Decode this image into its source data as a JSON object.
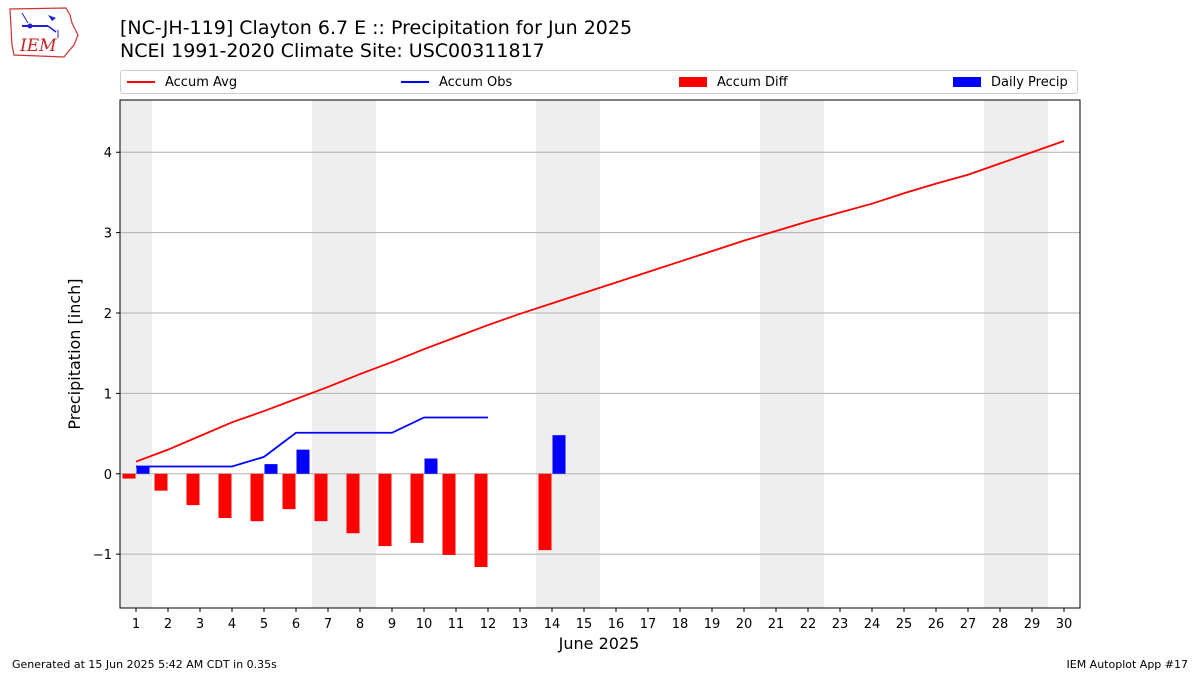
{
  "header": {
    "title_line1": "[NC-JH-119] Clayton 6.7 E :: Precipitation for Jun 2025",
    "title_line2": "NCEI 1991-2020 Climate Site: USC00311817"
  },
  "logo": {
    "text": "IEM",
    "icon": "iem-iowa-logo-icon",
    "color": "#cc2222"
  },
  "legend": [
    {
      "label": "Accum Avg",
      "kind": "line",
      "color": "#ff0000"
    },
    {
      "label": "Accum Obs",
      "kind": "line",
      "color": "#0000ff"
    },
    {
      "label": "Accum Diff",
      "kind": "box",
      "color": "#ff0000"
    },
    {
      "label": "Daily Precip",
      "kind": "box",
      "color": "#0000ff"
    }
  ],
  "footer": {
    "left": "Generated at 15 Jun 2025 5:42 AM CDT in 0.35s",
    "right": "IEM Autoplot App #17"
  },
  "chart_data": {
    "type": "bar",
    "title": "[NC-JH-119] Clayton 6.7 E :: Precipitation for Jun 2025",
    "xlabel": "June 2025",
    "ylabel": "Precipitation [inch]",
    "x": [
      1,
      2,
      3,
      4,
      5,
      6,
      7,
      8,
      9,
      10,
      11,
      12,
      13,
      14,
      15,
      16,
      17,
      18,
      19,
      20,
      21,
      22,
      23,
      24,
      25,
      26,
      27,
      28,
      29,
      30
    ],
    "xlim": [
      0.5,
      30.5
    ],
    "ylim": [
      -1.67,
      4.65
    ],
    "yticks": [
      -1,
      0,
      1,
      2,
      3,
      4
    ],
    "ytick_labels": [
      "−1",
      "0",
      "1",
      "2",
      "3",
      "4"
    ],
    "grid": "horizontal",
    "legend_position": "top",
    "weekend_shading": [
      [
        0.5,
        1.5
      ],
      [
        6.5,
        8.5
      ],
      [
        13.5,
        15.5
      ],
      [
        20.5,
        22.5
      ],
      [
        27.5,
        29.5
      ]
    ],
    "series": [
      {
        "name": "Accum Avg",
        "kind": "line",
        "color": "#ff0000",
        "values": [
          0.15,
          0.3,
          0.47,
          0.64,
          0.78,
          0.93,
          1.08,
          1.24,
          1.39,
          1.55,
          1.7,
          1.85,
          1.99,
          2.12,
          2.25,
          2.38,
          2.51,
          2.64,
          2.77,
          2.9,
          3.02,
          3.14,
          3.25,
          3.36,
          3.49,
          3.61,
          3.72,
          3.86,
          4.0,
          4.14
        ]
      },
      {
        "name": "Accum Obs",
        "kind": "line",
        "color": "#0000ff",
        "values": [
          0.09,
          0.09,
          0.09,
          0.09,
          0.21,
          0.51,
          0.51,
          0.51,
          0.51,
          0.7,
          0.7,
          0.7,
          null,
          null,
          null,
          null,
          null,
          null,
          null,
          null,
          null,
          null,
          null,
          null,
          null,
          null,
          null,
          null,
          null,
          null
        ]
      },
      {
        "name": "Accum Diff",
        "kind": "bar",
        "color": "#ff0000",
        "values": [
          -0.06,
          -0.21,
          -0.39,
          -0.55,
          -0.59,
          -0.44,
          -0.59,
          -0.74,
          -0.9,
          -0.86,
          -1.01,
          -1.16,
          null,
          -0.95,
          null,
          null,
          null,
          null,
          null,
          null,
          null,
          null,
          null,
          null,
          null,
          null,
          null,
          null,
          null,
          null
        ]
      },
      {
        "name": "Daily Precip",
        "kind": "bar",
        "color": "#0000ff",
        "values": [
          0.09,
          0,
          0,
          0,
          0.12,
          0.3,
          0,
          0,
          0,
          0.19,
          0,
          0,
          null,
          0.48,
          null,
          null,
          null,
          null,
          null,
          null,
          null,
          null,
          null,
          null,
          null,
          null,
          null,
          null,
          null,
          null
        ]
      }
    ]
  }
}
